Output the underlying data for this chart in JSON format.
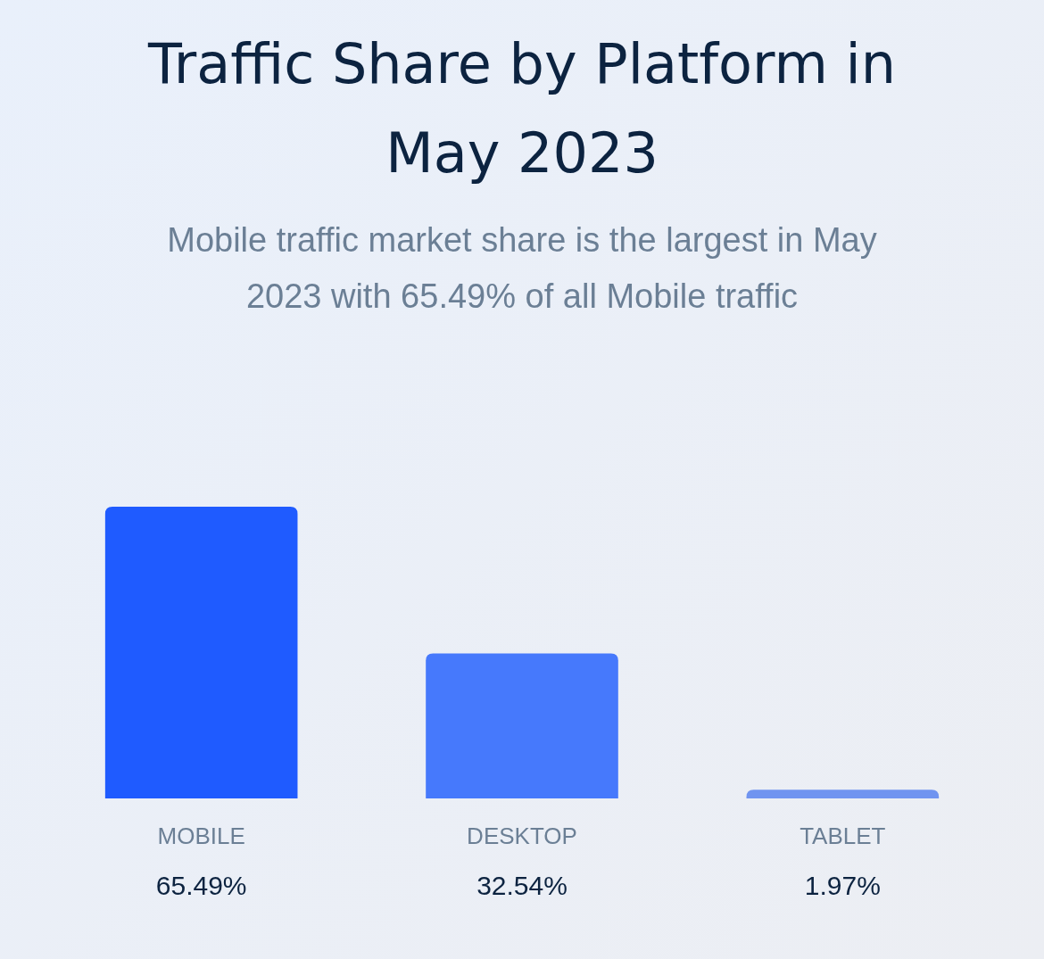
{
  "chart_data": {
    "type": "bar",
    "title": "Traffic Share by Platform in May 2023",
    "subtitle": "Mobile traffic market share is the largest in May 2023 with 65.49% of all Mobile traffic",
    "categories": [
      "MOBILE",
      "DESKTOP",
      "TABLET"
    ],
    "values": [
      65.49,
      32.54,
      1.97
    ],
    "colors": [
      "#1f5bff",
      "#4679fc",
      "#7094f0"
    ],
    "value_labels": [
      "65.49%",
      "32.54%",
      "1.97%"
    ]
  }
}
